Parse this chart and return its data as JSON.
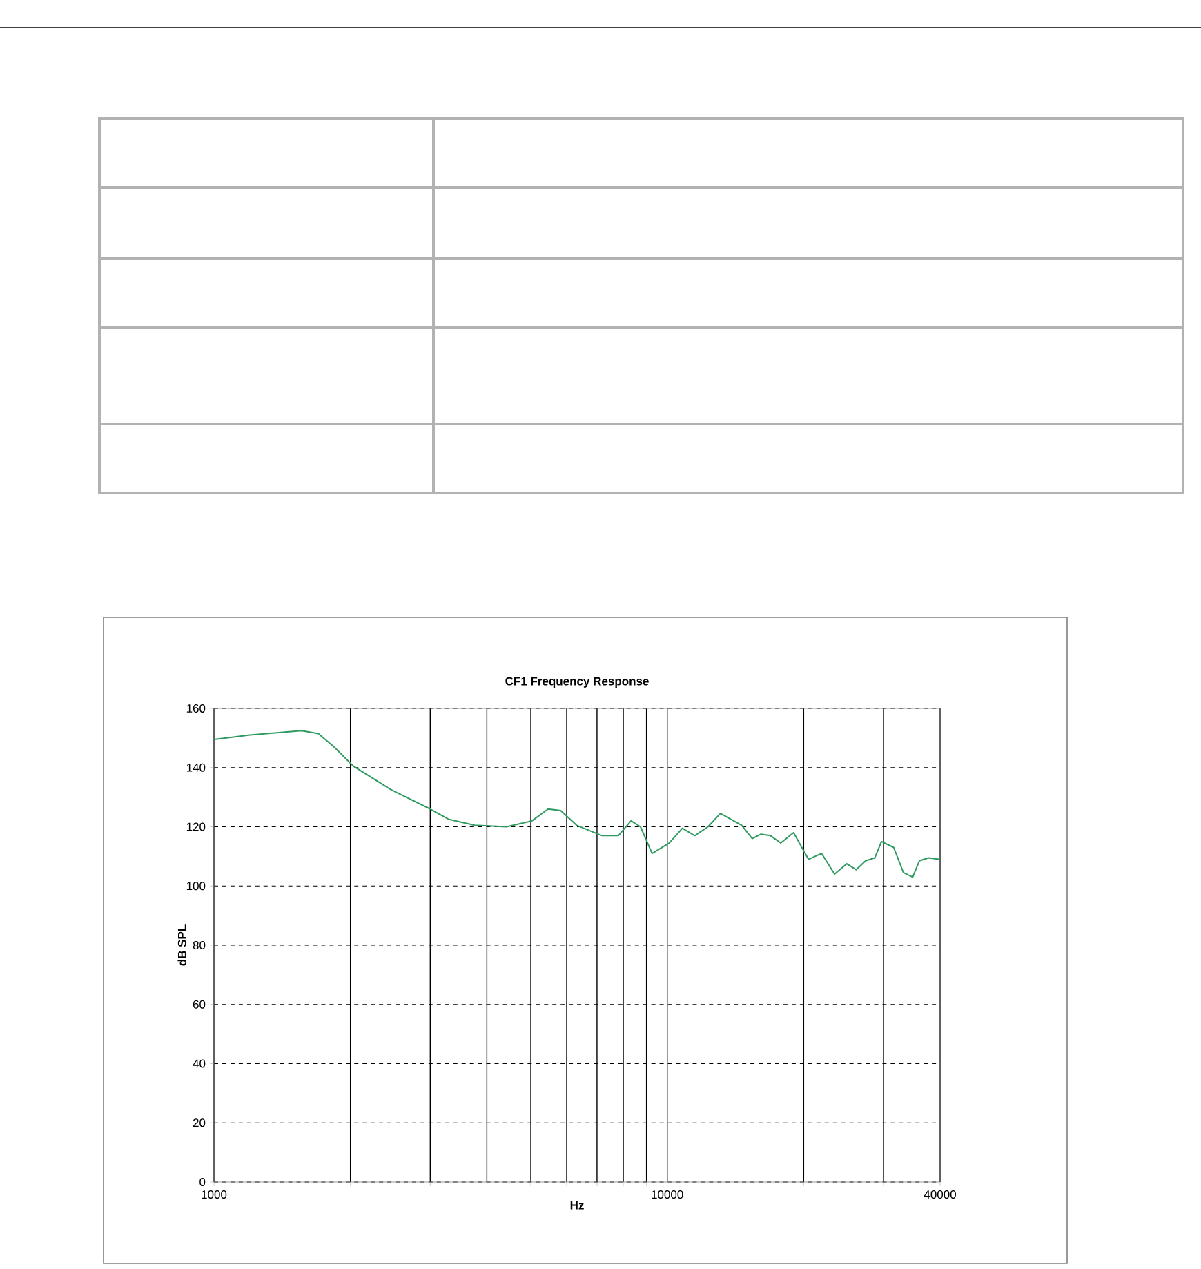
{
  "chart_data": {
    "type": "line",
    "title": "CF1 Frequency Response",
    "xlabel": "Hz",
    "ylabel": "dB SPL",
    "log": "x",
    "grid": true,
    "marker": "none",
    "line_style": "solid",
    "xlim": [
      1000,
      40000
    ],
    "ylim": [
      0,
      160
    ],
    "xticks": [
      1000,
      {
        "value": 2000,
        "label": null
      },
      {
        "value": 3000,
        "label": null
      },
      {
        "value": 4000,
        "label": null
      },
      {
        "value": 5000,
        "label": null
      },
      {
        "value": 6000,
        "label": null
      },
      {
        "value": 7000,
        "label": null
      },
      {
        "value": 8000,
        "label": null
      },
      {
        "value": 9000,
        "label": null
      },
      10000,
      {
        "value": 20000,
        "label": null
      },
      {
        "value": 30000,
        "label": null
      },
      40000
    ],
    "yticks": [
      0,
      20,
      40,
      60,
      80,
      100,
      120,
      140,
      160
    ],
    "series": [
      {
        "color": "#2e9960",
        "x": [
          1000,
          1200,
          1560,
          1700,
          1840,
          2030,
          2460,
          3000,
          3300,
          3760,
          4420,
          5030,
          5460,
          5820,
          6310,
          7180,
          7800,
          8320,
          8730,
          9260,
          10100,
          10800,
          11500,
          12300,
          13100,
          14600,
          15400,
          16100,
          16900,
          17800,
          19000,
          20500,
          21900,
          23400,
          24900,
          26100,
          27400,
          28700,
          29700,
          31600,
          33200,
          34800,
          36000,
          37700,
          40000
        ],
        "values": [
          149.5,
          151,
          152.5,
          151.5,
          147,
          140.5,
          132.5,
          126,
          122.5,
          120.5,
          120,
          122,
          126,
          125.5,
          120.5,
          117,
          117,
          122,
          120,
          111,
          114.5,
          119.5,
          117,
          120,
          124.5,
          120.5,
          116,
          117.5,
          117,
          114.5,
          118,
          109,
          111,
          104,
          107.5,
          105.5,
          108.5,
          109.5,
          115,
          113,
          104.5,
          103,
          108.5,
          109.5,
          109
        ]
      }
    ]
  }
}
